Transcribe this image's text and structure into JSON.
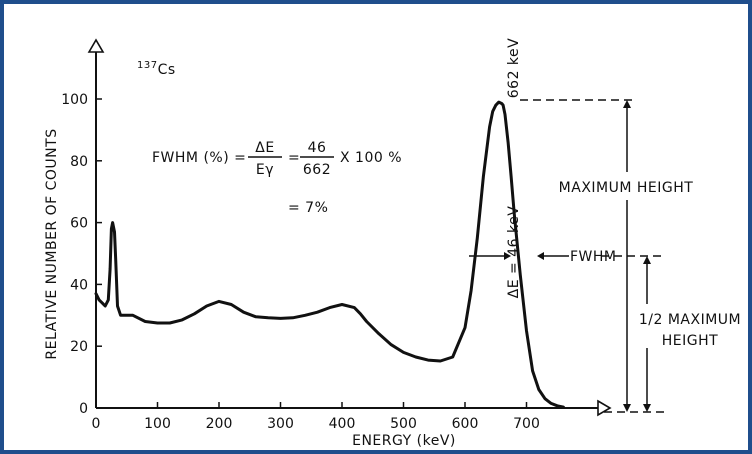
{
  "chart_data": {
    "type": "line",
    "title": "",
    "source_label": "Cs",
    "source_mass_number": "137",
    "xlabel": "ENERGY (keV)",
    "ylabel": "RELATIVE NUMBER OF COUNTS",
    "xlim": [
      0,
      800
    ],
    "ylim": [
      0,
      100
    ],
    "x_ticks": [
      0,
      100,
      200,
      300,
      400,
      500,
      600,
      700
    ],
    "y_ticks": [
      0,
      20,
      40,
      60,
      80,
      100
    ],
    "grid": false,
    "series": [
      {
        "x": [
          0,
          5,
          10,
          15,
          20,
          23,
          25,
          27,
          30,
          32,
          35,
          40,
          50,
          60,
          80,
          100,
          120,
          140,
          160,
          180,
          200,
          220,
          240,
          260,
          280,
          300,
          320,
          340,
          360,
          380,
          400,
          420,
          430,
          440,
          460,
          480,
          500,
          520,
          540,
          560,
          580,
          600,
          610,
          620,
          630,
          640,
          645,
          650,
          655,
          660,
          662,
          665,
          670,
          675,
          680,
          690,
          700,
          710,
          720,
          730,
          740,
          750,
          760
        ],
        "y": [
          37,
          35,
          34,
          33,
          35,
          45,
          58,
          60,
          57,
          48,
          33,
          30,
          30,
          30,
          28,
          27.5,
          27.5,
          28.5,
          30.5,
          33,
          34.5,
          33.5,
          31,
          29.5,
          29.2,
          29,
          29.2,
          30,
          31,
          32.5,
          33.5,
          32.5,
          30.5,
          28,
          24,
          20.5,
          18,
          16.5,
          15.5,
          15.2,
          16.5,
          26,
          38,
          55,
          75,
          91,
          96,
          98,
          99,
          98.5,
          98,
          95,
          86,
          75,
          63,
          43,
          25,
          12,
          6,
          3,
          1.5,
          0.7,
          0.3
        ]
      }
    ],
    "annotations": {
      "peak_label": "662 keV",
      "fwhm_lhs": "FWHM (%) =",
      "fwhm_num": "ΔE",
      "fwhm_den": "Eγ",
      "fwhm_num_val": "46",
      "fwhm_den_val": "662",
      "fwhm_mult": "X 100 %",
      "fwhm_result": "= 7%",
      "delta_e": "ΔE = 46 keV",
      "fwhm_tag": "FWHM",
      "max_height": "MAXIMUM HEIGHT",
      "half_max_1": "1/2 MAXIMUM",
      "half_max_2": "HEIGHT"
    }
  }
}
